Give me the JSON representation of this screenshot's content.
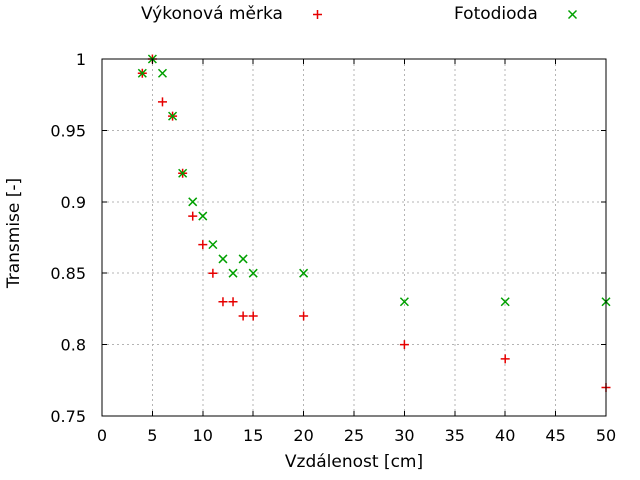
{
  "chart_data": {
    "type": "scatter",
    "title": "",
    "xlabel": "Vzdálenost [cm]",
    "ylabel": "Transmise [-]",
    "xlim": [
      0,
      50
    ],
    "ylim": [
      0.75,
      1.0
    ],
    "xticks": [
      0,
      5,
      10,
      15,
      20,
      25,
      30,
      35,
      40,
      45,
      50
    ],
    "yticks": [
      0.75,
      0.8,
      0.85,
      0.9,
      0.95,
      1
    ],
    "ytick_labels": [
      "0.75",
      "0.8",
      "0.85",
      "0.9",
      "0.95",
      "1"
    ],
    "grid": true,
    "grid_color": "#b4b4b4",
    "axis_color": "#000000",
    "legend_position": "above-plot-horizontal",
    "x": [
      4,
      5,
      6,
      7,
      8,
      9,
      10,
      11,
      12,
      13,
      14,
      15,
      20,
      30,
      40,
      50
    ],
    "series": [
      {
        "name": "Výkonová měrka",
        "marker": "plus",
        "color": "#e60000",
        "values": [
          0.99,
          1.0,
          0.97,
          0.96,
          0.92,
          0.89,
          0.87,
          0.85,
          0.83,
          0.83,
          0.82,
          0.82,
          0.82,
          0.8,
          0.79,
          0.77
        ]
      },
      {
        "name": "Fotodioda",
        "marker": "cross",
        "color": "#00a000",
        "values": [
          0.99,
          1.0,
          0.99,
          0.96,
          0.92,
          0.9,
          0.89,
          0.87,
          0.86,
          0.85,
          0.86,
          0.85,
          0.85,
          0.83,
          0.83,
          0.83
        ]
      }
    ]
  }
}
